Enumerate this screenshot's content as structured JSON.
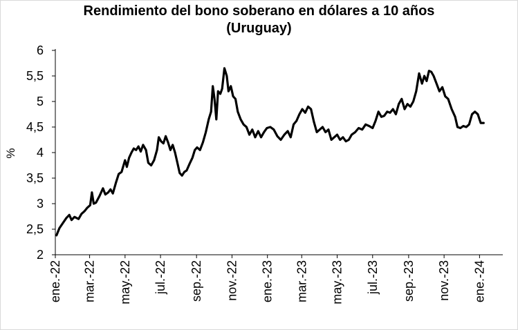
{
  "chart_data": {
    "type": "line",
    "title_line1": "Rendimiento del bono soberano en dólares a 10 años",
    "title_line2": "(Uruguay)",
    "xlabel": "",
    "ylabel": "%",
    "ylim": [
      2,
      6
    ],
    "yticks": [
      "2",
      "2,5",
      "3",
      "3,5",
      "4",
      "4,5",
      "5",
      "5,5",
      "6"
    ],
    "yticks_values": [
      2,
      2.5,
      3,
      3.5,
      4,
      4.5,
      5,
      5.5,
      6
    ],
    "x_start": "2022-01-01",
    "x_end": "2024-02-10",
    "xticks": [
      {
        "label": "ene.-22",
        "date": "2022-01-01"
      },
      {
        "label": "mar.-22",
        "date": "2022-03-01"
      },
      {
        "label": "may.-22",
        "date": "2022-05-01"
      },
      {
        "label": "jul.-22",
        "date": "2022-07-01"
      },
      {
        "label": "sep.-22",
        "date": "2022-09-01"
      },
      {
        "label": "nov.-22",
        "date": "2022-11-01"
      },
      {
        "label": "ene.-23",
        "date": "2023-01-01"
      },
      {
        "label": "mar.-23",
        "date": "2023-03-01"
      },
      {
        "label": "may.-23",
        "date": "2023-05-01"
      },
      {
        "label": "jul.-23",
        "date": "2023-07-01"
      },
      {
        "label": "sep.-23",
        "date": "2023-09-01"
      },
      {
        "label": "nov.-23",
        "date": "2023-11-01"
      },
      {
        "label": "ene.-24",
        "date": "2024-01-01"
      }
    ],
    "grid": false,
    "legend": "none",
    "series": [
      {
        "color": "#000000",
        "points": [
          [
            "2022-01-03",
            2.38
          ],
          [
            "2022-01-08",
            2.52
          ],
          [
            "2022-01-14",
            2.62
          ],
          [
            "2022-01-20",
            2.72
          ],
          [
            "2022-01-25",
            2.78
          ],
          [
            "2022-01-29",
            2.68
          ],
          [
            "2022-02-03",
            2.74
          ],
          [
            "2022-02-10",
            2.7
          ],
          [
            "2022-02-15",
            2.8
          ],
          [
            "2022-02-20",
            2.85
          ],
          [
            "2022-02-25",
            2.92
          ],
          [
            "2022-03-02",
            2.97
          ],
          [
            "2022-03-05",
            3.22
          ],
          [
            "2022-03-08",
            3.0
          ],
          [
            "2022-03-12",
            3.02
          ],
          [
            "2022-03-18",
            3.15
          ],
          [
            "2022-03-24",
            3.3
          ],
          [
            "2022-03-28",
            3.18
          ],
          [
            "2022-04-02",
            3.22
          ],
          [
            "2022-04-06",
            3.28
          ],
          [
            "2022-04-10",
            3.2
          ],
          [
            "2022-04-15",
            3.4
          ],
          [
            "2022-04-20",
            3.58
          ],
          [
            "2022-04-25",
            3.62
          ],
          [
            "2022-05-01",
            3.85
          ],
          [
            "2022-05-04",
            3.72
          ],
          [
            "2022-05-08",
            3.9
          ],
          [
            "2022-05-12",
            4.0
          ],
          [
            "2022-05-16",
            4.08
          ],
          [
            "2022-05-20",
            4.05
          ],
          [
            "2022-05-24",
            4.12
          ],
          [
            "2022-05-28",
            4.02
          ],
          [
            "2022-06-01",
            4.15
          ],
          [
            "2022-06-06",
            4.05
          ],
          [
            "2022-06-10",
            3.8
          ],
          [
            "2022-06-15",
            3.75
          ],
          [
            "2022-06-20",
            3.85
          ],
          [
            "2022-06-25",
            4.05
          ],
          [
            "2022-06-28",
            4.3
          ],
          [
            "2022-07-02",
            4.22
          ],
          [
            "2022-07-06",
            4.18
          ],
          [
            "2022-07-10",
            4.32
          ],
          [
            "2022-07-14",
            4.2
          ],
          [
            "2022-07-18",
            4.05
          ],
          [
            "2022-07-22",
            4.15
          ],
          [
            "2022-07-26",
            4.0
          ],
          [
            "2022-07-30",
            3.8
          ],
          [
            "2022-08-03",
            3.6
          ],
          [
            "2022-08-07",
            3.55
          ],
          [
            "2022-08-11",
            3.62
          ],
          [
            "2022-08-15",
            3.65
          ],
          [
            "2022-08-20",
            3.78
          ],
          [
            "2022-08-25",
            3.9
          ],
          [
            "2022-08-29",
            4.05
          ],
          [
            "2022-09-02",
            4.1
          ],
          [
            "2022-09-07",
            4.05
          ],
          [
            "2022-09-12",
            4.2
          ],
          [
            "2022-09-17",
            4.4
          ],
          [
            "2022-09-22",
            4.65
          ],
          [
            "2022-09-26",
            4.8
          ],
          [
            "2022-09-29",
            5.3
          ],
          [
            "2022-10-02",
            5.05
          ],
          [
            "2022-10-05",
            4.65
          ],
          [
            "2022-10-08",
            5.2
          ],
          [
            "2022-10-12",
            5.15
          ],
          [
            "2022-10-15",
            5.25
          ],
          [
            "2022-10-19",
            5.65
          ],
          [
            "2022-10-23",
            5.5
          ],
          [
            "2022-10-26",
            5.2
          ],
          [
            "2022-10-30",
            5.3
          ],
          [
            "2022-11-03",
            5.1
          ],
          [
            "2022-11-07",
            5.05
          ],
          [
            "2022-11-11",
            4.8
          ],
          [
            "2022-11-16",
            4.65
          ],
          [
            "2022-11-21",
            4.55
          ],
          [
            "2022-11-26",
            4.5
          ],
          [
            "2022-12-01",
            4.35
          ],
          [
            "2022-12-06",
            4.45
          ],
          [
            "2022-12-11",
            4.3
          ],
          [
            "2022-12-16",
            4.42
          ],
          [
            "2022-12-21",
            4.3
          ],
          [
            "2022-12-26",
            4.4
          ],
          [
            "2022-12-31",
            4.48
          ],
          [
            "2023-01-06",
            4.5
          ],
          [
            "2023-01-12",
            4.45
          ],
          [
            "2023-01-18",
            4.32
          ],
          [
            "2023-01-24",
            4.25
          ],
          [
            "2023-01-30",
            4.35
          ],
          [
            "2023-02-05",
            4.42
          ],
          [
            "2023-02-10",
            4.3
          ],
          [
            "2023-02-15",
            4.55
          ],
          [
            "2023-02-20",
            4.62
          ],
          [
            "2023-02-25",
            4.75
          ],
          [
            "2023-03-02",
            4.85
          ],
          [
            "2023-03-07",
            4.78
          ],
          [
            "2023-03-12",
            4.9
          ],
          [
            "2023-03-17",
            4.85
          ],
          [
            "2023-03-22",
            4.6
          ],
          [
            "2023-03-27",
            4.4
          ],
          [
            "2023-04-01",
            4.45
          ],
          [
            "2023-04-06",
            4.5
          ],
          [
            "2023-04-11",
            4.4
          ],
          [
            "2023-04-16",
            4.45
          ],
          [
            "2023-04-21",
            4.25
          ],
          [
            "2023-04-26",
            4.3
          ],
          [
            "2023-05-01",
            4.35
          ],
          [
            "2023-05-06",
            4.25
          ],
          [
            "2023-05-11",
            4.3
          ],
          [
            "2023-05-16",
            4.22
          ],
          [
            "2023-05-21",
            4.25
          ],
          [
            "2023-05-26",
            4.35
          ],
          [
            "2023-06-01",
            4.4
          ],
          [
            "2023-06-07",
            4.48
          ],
          [
            "2023-06-13",
            4.45
          ],
          [
            "2023-06-19",
            4.55
          ],
          [
            "2023-06-25",
            4.52
          ],
          [
            "2023-07-01",
            4.48
          ],
          [
            "2023-07-06",
            4.62
          ],
          [
            "2023-07-11",
            4.8
          ],
          [
            "2023-07-16",
            4.7
          ],
          [
            "2023-07-21",
            4.72
          ],
          [
            "2023-07-26",
            4.8
          ],
          [
            "2023-07-31",
            4.78
          ],
          [
            "2023-08-05",
            4.85
          ],
          [
            "2023-08-10",
            4.75
          ],
          [
            "2023-08-15",
            4.95
          ],
          [
            "2023-08-20",
            5.05
          ],
          [
            "2023-08-25",
            4.85
          ],
          [
            "2023-08-30",
            4.95
          ],
          [
            "2023-09-04",
            4.9
          ],
          [
            "2023-09-09",
            5.0
          ],
          [
            "2023-09-14",
            5.2
          ],
          [
            "2023-09-19",
            5.55
          ],
          [
            "2023-09-24",
            5.35
          ],
          [
            "2023-09-28",
            5.5
          ],
          [
            "2023-10-02",
            5.4
          ],
          [
            "2023-10-06",
            5.6
          ],
          [
            "2023-10-10",
            5.58
          ],
          [
            "2023-10-14",
            5.5
          ],
          [
            "2023-10-19",
            5.35
          ],
          [
            "2023-10-24",
            5.2
          ],
          [
            "2023-10-29",
            5.28
          ],
          [
            "2023-11-03",
            5.1
          ],
          [
            "2023-11-08",
            5.05
          ],
          [
            "2023-11-14",
            4.85
          ],
          [
            "2023-11-20",
            4.7
          ],
          [
            "2023-11-24",
            4.5
          ],
          [
            "2023-11-29",
            4.48
          ],
          [
            "2023-12-04",
            4.52
          ],
          [
            "2023-12-09",
            4.5
          ],
          [
            "2023-12-14",
            4.55
          ],
          [
            "2023-12-19",
            4.75
          ],
          [
            "2023-12-24",
            4.8
          ],
          [
            "2023-12-29",
            4.75
          ],
          [
            "2024-01-03",
            4.58
          ],
          [
            "2024-01-08",
            4.58
          ]
        ]
      }
    ]
  }
}
